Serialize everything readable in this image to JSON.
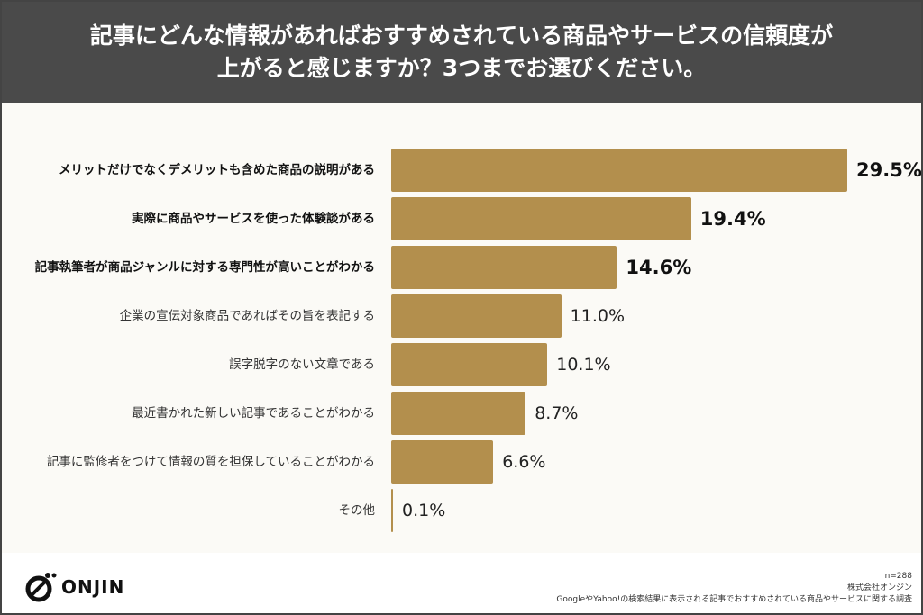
{
  "header": {
    "title_line1": "記事にどんな情報があればおすすめされている商品やサービスの信頼度が",
    "title_line2": "上がると感じますか？3つまでお選びください。"
  },
  "chart_data": {
    "type": "bar",
    "orientation": "horizontal",
    "categories": [
      "メリットだけでなくデメリットも含めた商品の説明がある",
      "実際に商品やサービスを使った体験談がある",
      "記事執筆者が商品ジャンルに対する専門性が高いことがわかる",
      "企業の宣伝対象商品であればその旨を表記する",
      "誤字脱字のない文章である",
      "最近書かれた新しい記事であることがわかる",
      "記事に監修者をつけて情報の質を担保していることがわかる",
      "その他"
    ],
    "values": [
      29.5,
      19.4,
      14.6,
      11.0,
      10.1,
      8.7,
      6.6,
      0.1
    ],
    "value_labels": [
      "29.5%",
      "19.4%",
      "14.6%",
      "11.0%",
      "10.1%",
      "8.7%",
      "6.6%",
      "0.1%"
    ],
    "highlighted_top": 3,
    "xlim": [
      0,
      29.5
    ],
    "grid": false,
    "bar_color": "#b38f4d"
  },
  "footer": {
    "logo_text": "ONJIN",
    "n": "n=288",
    "company": "株式会社オンジン",
    "survey": "GoogleやYahoo!の検索結果に表示される記事でおすすめされている商品やサービスに関する調査"
  }
}
